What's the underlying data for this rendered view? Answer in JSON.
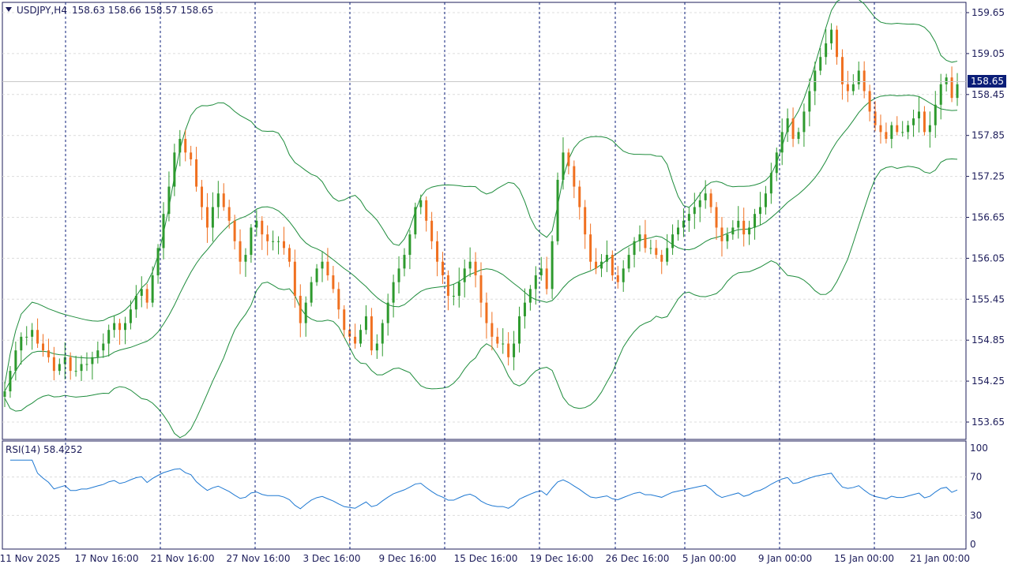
{
  "header": {
    "symbol_label": "USDJPY,H4",
    "ohlc_text": "158.63 158.66 158.57 158.65"
  },
  "indicator": {
    "label": "RSI(14) 58.4252"
  },
  "current_price": "158.65",
  "colors": {
    "bull": "#2e9a2e",
    "bear": "#f07020",
    "band": "#1e8c3c",
    "rsi": "#1e78d2",
    "axis_text": "#1c1c5a",
    "price_tag_bg": "#0b1e78"
  },
  "chart_data": [
    {
      "type": "candlestick",
      "title": "USDJPY,H4",
      "ylim": [
        153.4,
        159.8
      ],
      "y_ticks": [
        "159.65",
        "159.05",
        "158.45",
        "157.85",
        "157.25",
        "156.65",
        "156.05",
        "155.45",
        "154.85",
        "154.25",
        "153.65"
      ],
      "x_ticks": [
        "11 Nov 2025",
        "17 Nov 16:00",
        "21 Nov 16:00",
        "27 Nov 16:00",
        "3 Dec 16:00",
        "9 Dec 16:00",
        "15 Dec 16:00",
        "19 Dec 16:00",
        "26 Dec 16:00",
        "5 Jan 00:00",
        "9 Jan 00:00",
        "15 Jan 00:00",
        "21 Jan 00:00"
      ],
      "grid": true,
      "close": [
        154.1,
        154.4,
        154.7,
        154.9,
        154.9,
        155.0,
        154.8,
        154.7,
        154.6,
        154.4,
        154.5,
        154.6,
        154.4,
        154.4,
        154.5,
        154.5,
        154.6,
        154.7,
        154.8,
        155.0,
        155.1,
        155.0,
        155.1,
        155.3,
        155.5,
        155.6,
        155.4,
        155.8,
        156.2,
        156.7,
        157.1,
        157.6,
        157.8,
        157.6,
        157.5,
        157.1,
        156.8,
        156.5,
        156.8,
        157.0,
        156.8,
        156.6,
        156.3,
        156.0,
        156.1,
        156.5,
        156.6,
        156.4,
        156.3,
        156.3,
        156.3,
        156.2,
        156.0,
        155.5,
        155.1,
        155.4,
        155.7,
        155.9,
        156.0,
        155.8,
        155.6,
        155.3,
        155.0,
        154.9,
        154.8,
        155.0,
        155.2,
        154.7,
        154.8,
        155.1,
        155.4,
        155.7,
        155.9,
        156.1,
        156.4,
        156.8,
        156.9,
        156.6,
        156.3,
        156.0,
        155.8,
        155.5,
        155.5,
        155.7,
        155.9,
        156.0,
        155.8,
        155.4,
        155.1,
        154.9,
        154.8,
        154.8,
        154.6,
        154.8,
        155.2,
        155.4,
        155.6,
        155.8,
        155.9,
        155.6,
        156.3,
        157.2,
        157.6,
        157.4,
        157.1,
        156.8,
        156.4,
        156.0,
        155.9,
        156.0,
        156.1,
        155.8,
        155.7,
        155.9,
        156.1,
        156.3,
        156.4,
        156.2,
        156.2,
        156.1,
        156.0,
        156.2,
        156.4,
        156.5,
        156.6,
        156.7,
        156.8,
        156.9,
        157.0,
        156.8,
        156.5,
        156.3,
        156.4,
        156.5,
        156.6,
        156.4,
        156.5,
        156.7,
        156.8,
        157.0,
        157.3,
        157.6,
        157.9,
        158.1,
        157.8,
        157.9,
        158.2,
        158.5,
        158.8,
        159.0,
        159.2,
        159.4,
        159.0,
        158.6,
        158.5,
        158.6,
        158.8,
        158.5,
        158.2,
        158.0,
        157.9,
        157.8,
        158.0,
        157.9,
        157.9,
        158.0,
        158.1,
        158.2,
        157.9,
        158.0,
        158.3,
        158.6,
        158.7,
        158.4,
        158.6
      ]
    },
    {
      "type": "line",
      "title": "RSI(14) 58.4252",
      "ylim": [
        0,
        100
      ],
      "y_ticks": [
        "100",
        "70",
        "30",
        "0"
      ],
      "grid": true
    }
  ]
}
